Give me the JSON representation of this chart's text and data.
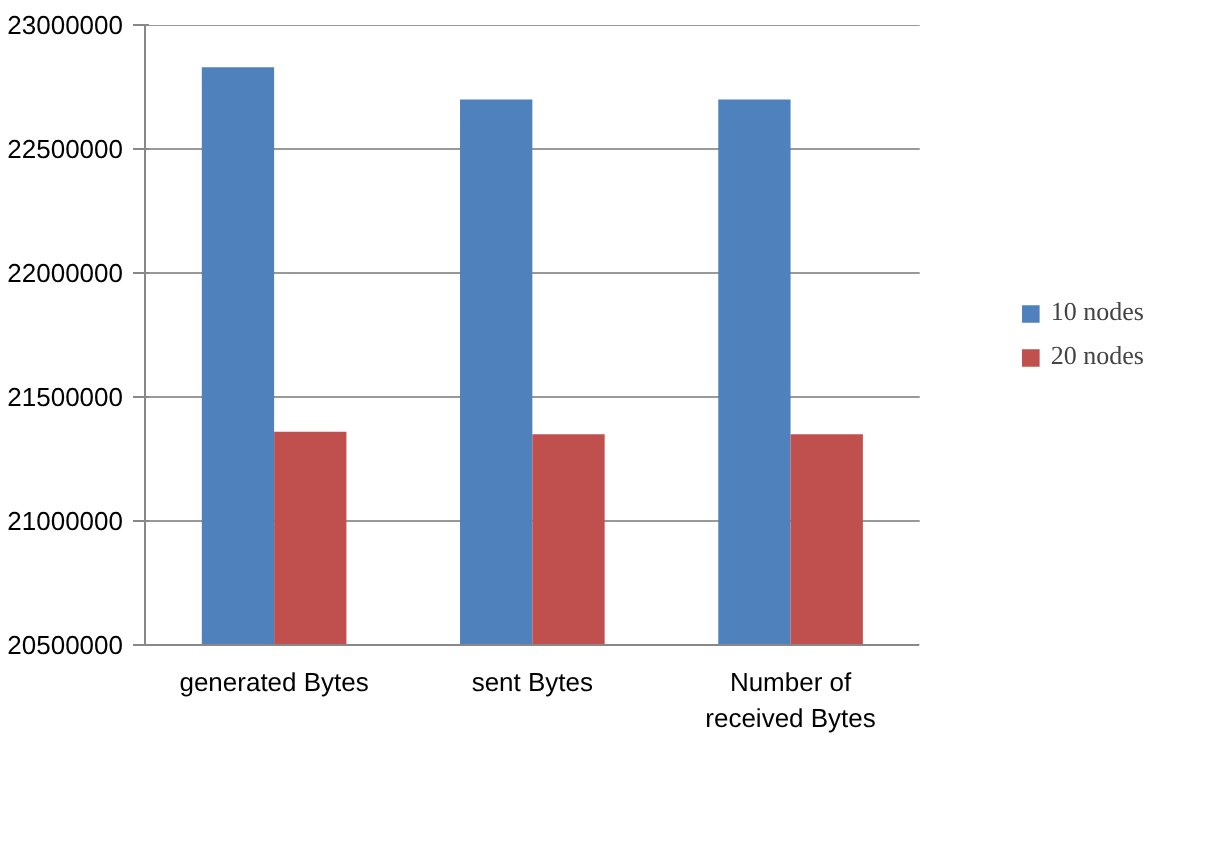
{
  "chart_data": {
    "type": "bar",
    "categories": [
      "generated Bytes",
      "sent Bytes",
      "Number of received Bytes"
    ],
    "series": [
      {
        "name": "10 nodes",
        "color": "#4f81bd",
        "values": [
          22830000,
          22700000,
          22700000
        ]
      },
      {
        "name": "20 nodes",
        "color": "#c0504d",
        "values": [
          21360000,
          21350000,
          21350000
        ]
      }
    ],
    "ylim": [
      20500000,
      23000000
    ],
    "yticks": [
      20500000,
      21000000,
      21500000,
      22000000,
      22500000,
      23000000
    ],
    "grid": "y",
    "legend": "right"
  }
}
